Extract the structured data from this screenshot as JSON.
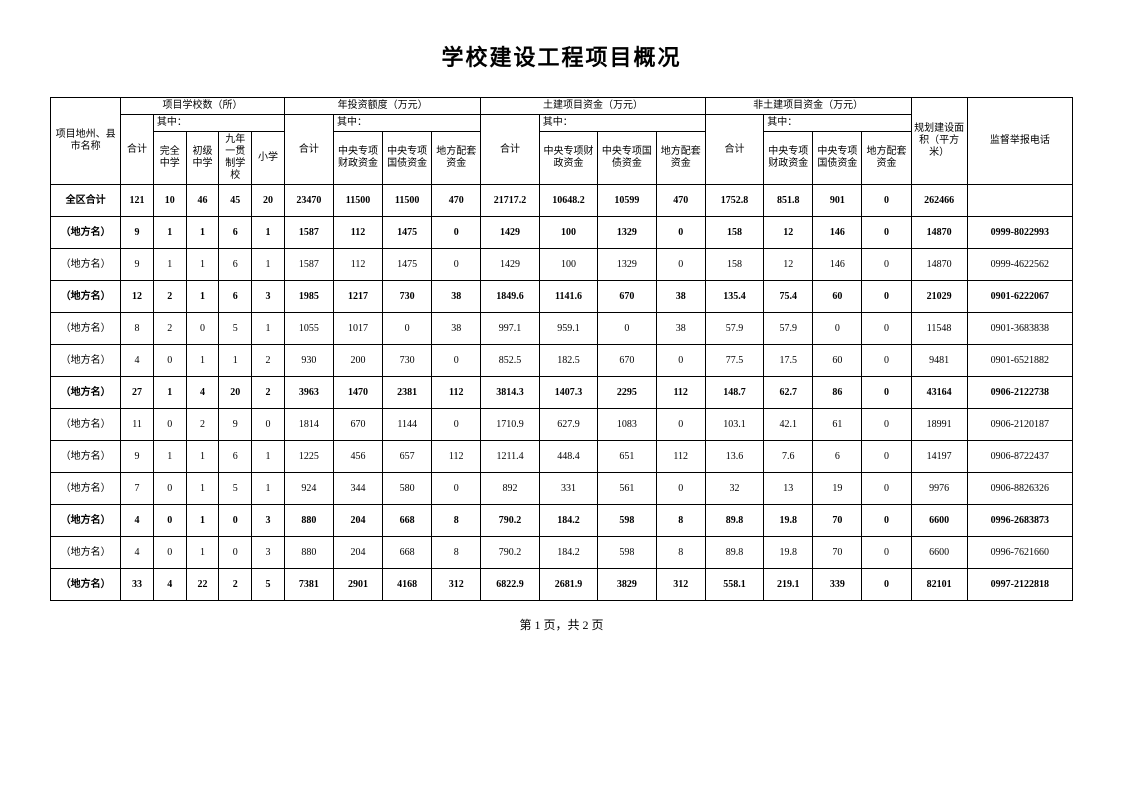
{
  "title": "学校建设工程项目概况",
  "pagination": "第 1 页，共 2 页",
  "headers": {
    "region": "项目地州、县市名称",
    "school_group": "项目学校数（所）",
    "school_total": "合计",
    "school_sub": "其中：",
    "school_complete": "完全中学",
    "school_junior": "初级中学",
    "school_nine": "九年一贯制学校",
    "school_primary": "小学",
    "invest_group": "年投资额度（万元）",
    "invest_total": "合计",
    "invest_sub": "其中：",
    "invest_special": "中央专项财政资金",
    "invest_bond": "中央专项国债资金",
    "invest_local": "地方配套资金",
    "land_group": "土建项目资金（万元）",
    "land_total": "合计",
    "land_sub": "其中：",
    "land_special": "中央专项财政资金",
    "land_bond": "中央专项国债资金",
    "land_local": "地方配套资金",
    "nonland_group": "非土建项目资金（万元）",
    "nonland_total": "合计",
    "nonland_sub": "其中：",
    "nonland_special": "中央专项财政资金",
    "nonland_bond": "中央专项国债资金",
    "nonland_local": "地方配套资金",
    "area": "规划建设面积（平方米）",
    "phone": "监督举报电话"
  },
  "rows": [
    {
      "bold": true,
      "c": [
        "全区合计",
        "121",
        "10",
        "46",
        "45",
        "20",
        "23470",
        "11500",
        "11500",
        "470",
        "21717.2",
        "10648.2",
        "10599",
        "470",
        "1752.8",
        "851.8",
        "901",
        "0",
        "262466",
        ""
      ]
    },
    {
      "bold": true,
      "c": [
        "（地方名）",
        "9",
        "1",
        "1",
        "6",
        "1",
        "1587",
        "112",
        "1475",
        "0",
        "1429",
        "100",
        "1329",
        "0",
        "158",
        "12",
        "146",
        "0",
        "14870",
        "0999-8022993"
      ]
    },
    {
      "bold": false,
      "c": [
        "（地方名）",
        "9",
        "1",
        "1",
        "6",
        "1",
        "1587",
        "112",
        "1475",
        "0",
        "1429",
        "100",
        "1329",
        "0",
        "158",
        "12",
        "146",
        "0",
        "14870",
        "0999-4622562"
      ]
    },
    {
      "bold": true,
      "c": [
        "（地方名）",
        "12",
        "2",
        "1",
        "6",
        "3",
        "1985",
        "1217",
        "730",
        "38",
        "1849.6",
        "1141.6",
        "670",
        "38",
        "135.4",
        "75.4",
        "60",
        "0",
        "21029",
        "0901-6222067"
      ]
    },
    {
      "bold": false,
      "c": [
        "（地方名）",
        "8",
        "2",
        "0",
        "5",
        "1",
        "1055",
        "1017",
        "0",
        "38",
        "997.1",
        "959.1",
        "0",
        "38",
        "57.9",
        "57.9",
        "0",
        "0",
        "11548",
        "0901-3683838"
      ]
    },
    {
      "bold": false,
      "c": [
        "（地方名）",
        "4",
        "0",
        "1",
        "1",
        "2",
        "930",
        "200",
        "730",
        "0",
        "852.5",
        "182.5",
        "670",
        "0",
        "77.5",
        "17.5",
        "60",
        "0",
        "9481",
        "0901-6521882"
      ]
    },
    {
      "bold": true,
      "c": [
        "（地方名）",
        "27",
        "1",
        "4",
        "20",
        "2",
        "3963",
        "1470",
        "2381",
        "112",
        "3814.3",
        "1407.3",
        "2295",
        "112",
        "148.7",
        "62.7",
        "86",
        "0",
        "43164",
        "0906-2122738"
      ]
    },
    {
      "bold": false,
      "c": [
        "（地方名）",
        "11",
        "0",
        "2",
        "9",
        "0",
        "1814",
        "670",
        "1144",
        "0",
        "1710.9",
        "627.9",
        "1083",
        "0",
        "103.1",
        "42.1",
        "61",
        "0",
        "18991",
        "0906-2120187"
      ]
    },
    {
      "bold": false,
      "c": [
        "（地方名）",
        "9",
        "1",
        "1",
        "6",
        "1",
        "1225",
        "456",
        "657",
        "112",
        "1211.4",
        "448.4",
        "651",
        "112",
        "13.6",
        "7.6",
        "6",
        "0",
        "14197",
        "0906-8722437"
      ]
    },
    {
      "bold": false,
      "c": [
        "（地方名）",
        "7",
        "0",
        "1",
        "5",
        "1",
        "924",
        "344",
        "580",
        "0",
        "892",
        "331",
        "561",
        "0",
        "32",
        "13",
        "19",
        "0",
        "9976",
        "0906-8826326"
      ]
    },
    {
      "bold": true,
      "c": [
        "（地方名）",
        "4",
        "0",
        "1",
        "0",
        "3",
        "880",
        "204",
        "668",
        "8",
        "790.2",
        "184.2",
        "598",
        "8",
        "89.8",
        "19.8",
        "70",
        "0",
        "6600",
        "0996-2683873"
      ]
    },
    {
      "bold": false,
      "c": [
        "（地方名）",
        "4",
        "0",
        "1",
        "0",
        "3",
        "880",
        "204",
        "668",
        "8",
        "790.2",
        "184.2",
        "598",
        "8",
        "89.8",
        "19.8",
        "70",
        "0",
        "6600",
        "0996-7621660"
      ]
    },
    {
      "bold": true,
      "c": [
        "（地方名）",
        "33",
        "4",
        "22",
        "2",
        "5",
        "7381",
        "2901",
        "4168",
        "312",
        "6822.9",
        "2681.9",
        "3829",
        "312",
        "558.1",
        "219.1",
        "339",
        "0",
        "82101",
        "0997-2122818"
      ]
    }
  ],
  "colors": {
    "background": "#ffffff",
    "border": "#000000",
    "text": "#000000",
    "watermark": "#e8e8e8"
  }
}
